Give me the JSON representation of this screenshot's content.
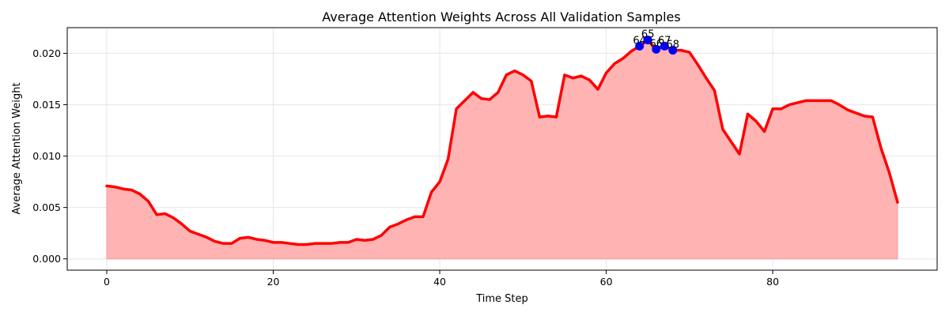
{
  "chart_data": {
    "type": "area",
    "title": "Average Attention Weights Across All Validation Samples",
    "xlabel": "Time Step",
    "ylabel": "Average Attention Weight",
    "xlim": [
      -4.75,
      99.75
    ],
    "ylim": [
      -0.0011,
      0.0225
    ],
    "xticks": [
      0,
      20,
      40,
      60,
      80
    ],
    "xtick_labels": [
      "0",
      "20",
      "40",
      "60",
      "80"
    ],
    "yticks": [
      0.0,
      0.005,
      0.01,
      0.015,
      0.02
    ],
    "ytick_labels": [
      "0.000",
      "0.005",
      "0.010",
      "0.015",
      "0.020"
    ],
    "grid": true,
    "line_color": "#ff0000",
    "fill_color": "#ffb3b3",
    "marker_color": "#0000ff",
    "x": [
      0,
      1,
      2,
      3,
      4,
      5,
      6,
      7,
      8,
      9,
      10,
      11,
      12,
      13,
      14,
      15,
      16,
      17,
      18,
      19,
      20,
      21,
      22,
      23,
      24,
      25,
      26,
      27,
      28,
      29,
      30,
      31,
      32,
      33,
      34,
      35,
      36,
      37,
      38,
      39,
      40,
      41,
      42,
      43,
      44,
      45,
      46,
      47,
      48,
      49,
      50,
      51,
      52,
      53,
      54,
      55,
      56,
      57,
      58,
      59,
      60,
      61,
      62,
      63,
      64,
      65,
      66,
      67,
      68,
      69,
      70,
      71,
      72,
      73,
      74,
      75,
      76,
      77,
      78,
      79,
      80,
      81,
      82,
      83,
      84,
      85,
      86,
      87,
      88,
      89,
      90,
      91,
      92,
      93,
      94,
      95
    ],
    "values": [
      0.0071,
      0.007,
      0.0068,
      0.0067,
      0.0063,
      0.0056,
      0.0043,
      0.0044,
      0.004,
      0.0034,
      0.0027,
      0.0024,
      0.0021,
      0.0017,
      0.0015,
      0.0015,
      0.002,
      0.0021,
      0.0019,
      0.0018,
      0.0016,
      0.0016,
      0.0015,
      0.0014,
      0.0014,
      0.0015,
      0.0015,
      0.0015,
      0.0016,
      0.0016,
      0.0019,
      0.0018,
      0.0019,
      0.0023,
      0.0031,
      0.0034,
      0.0038,
      0.0041,
      0.0041,
      0.0065,
      0.0075,
      0.0097,
      0.0146,
      0.0154,
      0.0162,
      0.0156,
      0.0155,
      0.0162,
      0.0179,
      0.0183,
      0.0179,
      0.0173,
      0.0138,
      0.0139,
      0.0138,
      0.0179,
      0.0176,
      0.0178,
      0.0174,
      0.0165,
      0.0181,
      0.019,
      0.0195,
      0.0202,
      0.0207,
      0.0213,
      0.0204,
      0.0207,
      0.0203,
      0.0203,
      0.0201,
      0.0189,
      0.0176,
      0.0164,
      0.0126,
      0.0114,
      0.0102,
      0.0141,
      0.0134,
      0.0124,
      0.0146,
      0.0146,
      0.015,
      0.0152,
      0.0154,
      0.0154,
      0.0154,
      0.0154,
      0.015,
      0.0145,
      0.0142,
      0.0139,
      0.0138,
      0.0108,
      0.0084,
      0.0055
    ],
    "peaks": [
      {
        "x": 64,
        "y": 0.0207,
        "label": "64"
      },
      {
        "x": 65,
        "y": 0.0213,
        "label": "65"
      },
      {
        "x": 66,
        "y": 0.0204,
        "label": "66"
      },
      {
        "x": 67,
        "y": 0.0207,
        "label": "67"
      },
      {
        "x": 68,
        "y": 0.0203,
        "label": "68"
      }
    ]
  }
}
